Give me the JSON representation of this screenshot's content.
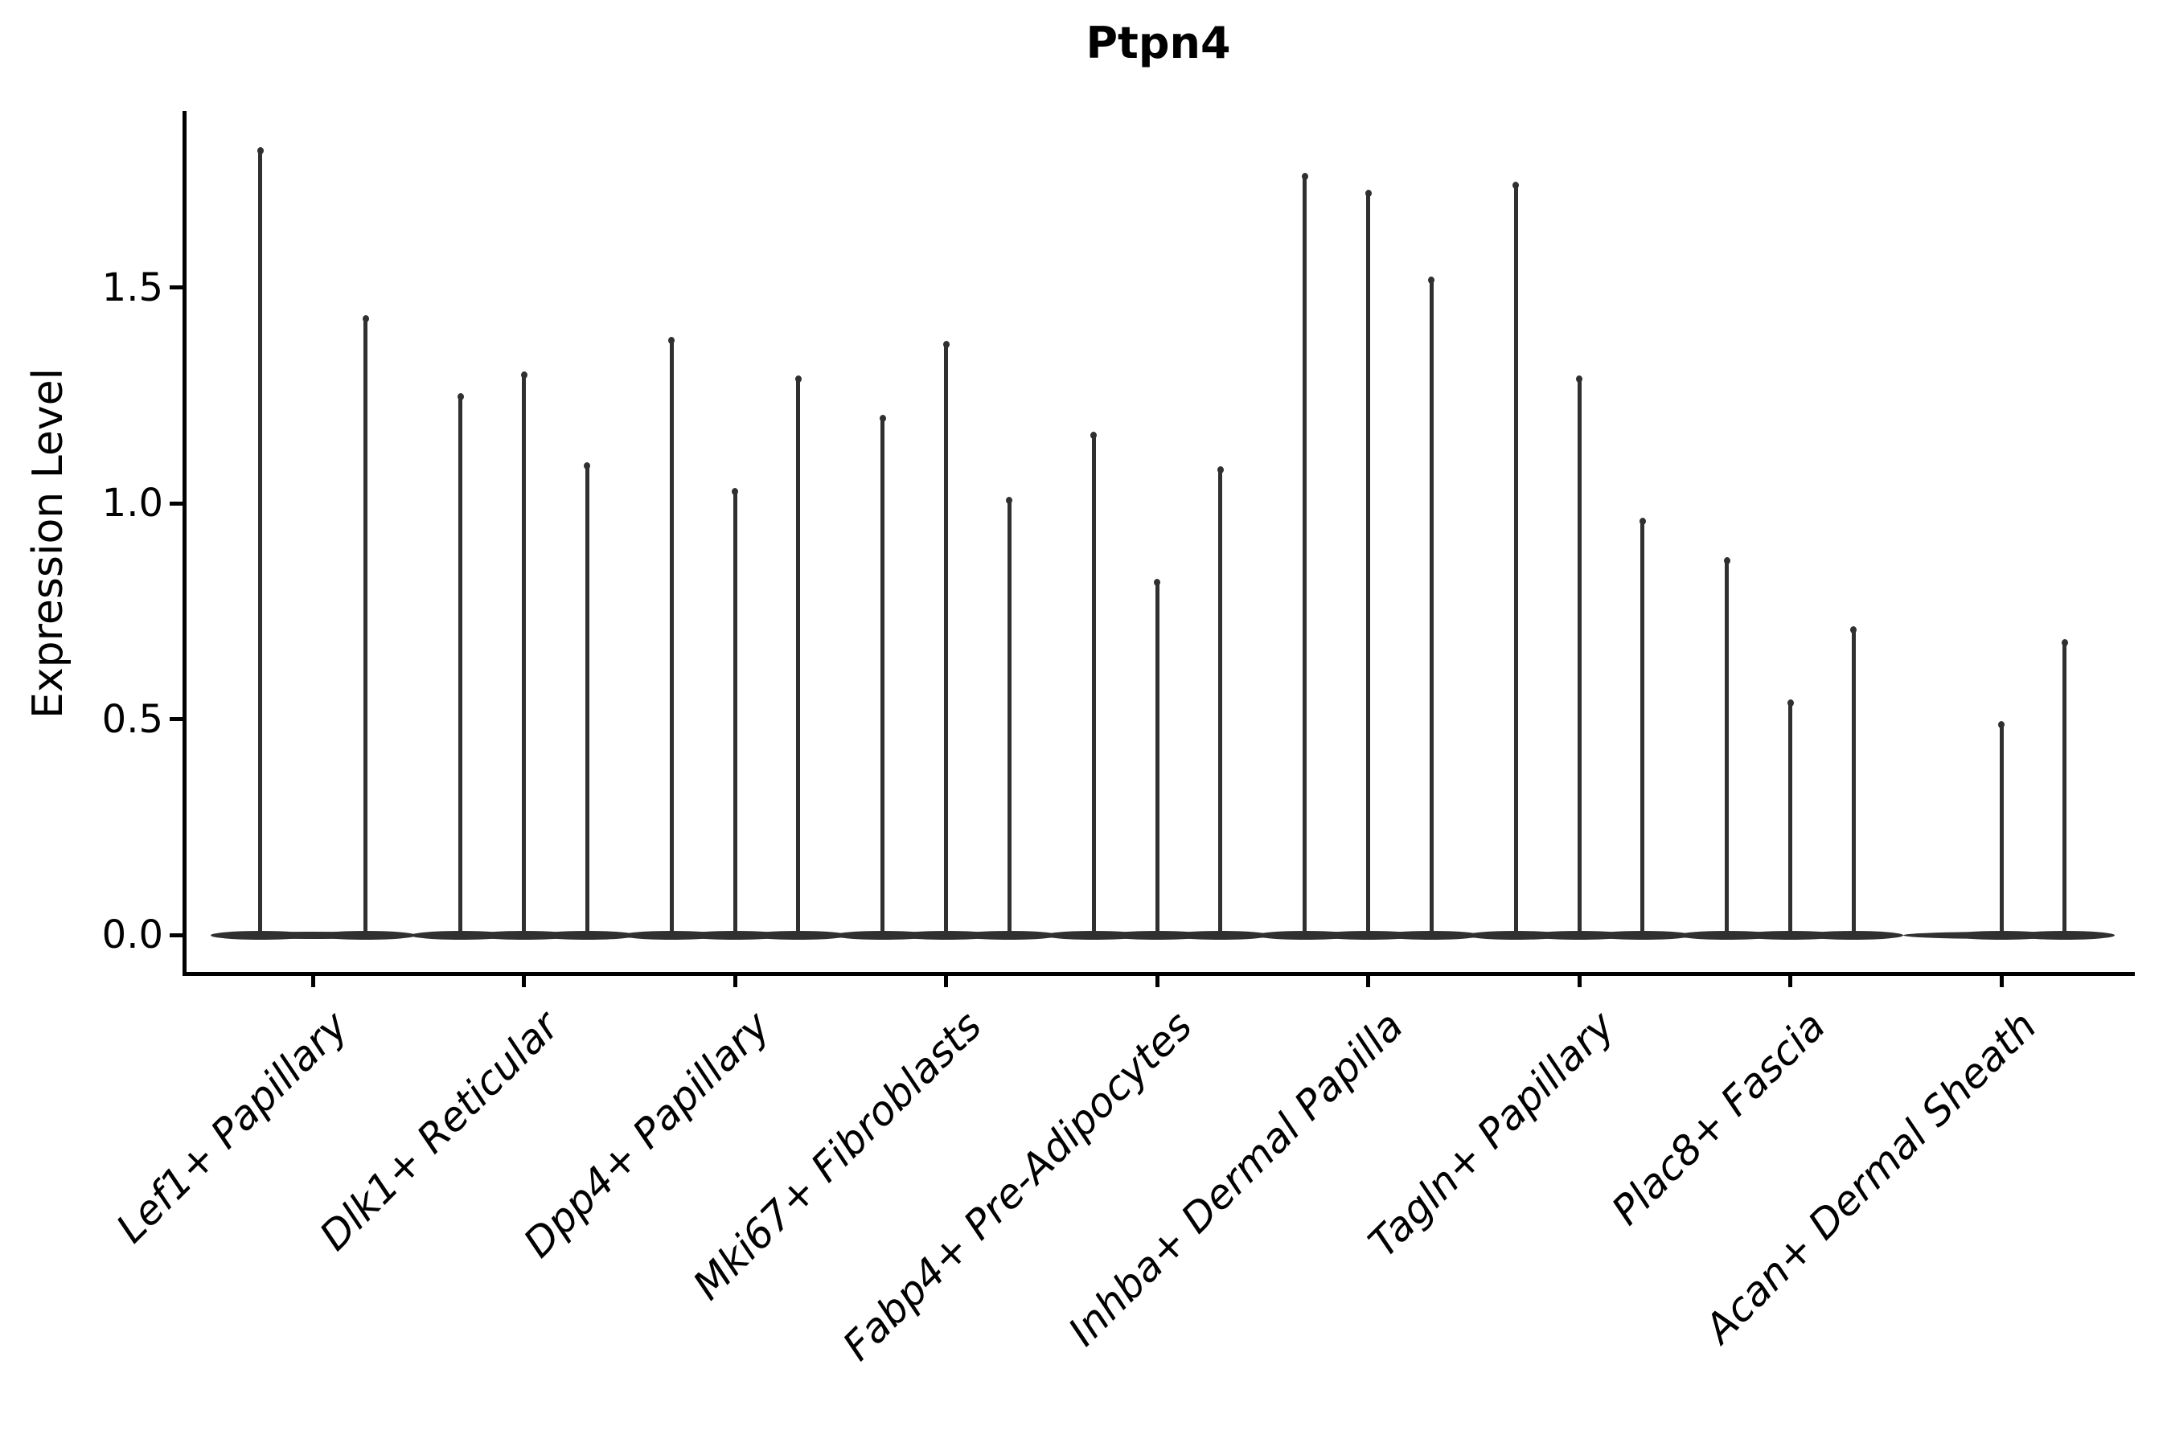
{
  "title": "Ptpn4",
  "y_axis": {
    "label": "Expression Level",
    "tick_labels": [
      "0.0",
      "0.5",
      "1.0",
      "1.5"
    ]
  },
  "chart_data": {
    "type": "violin",
    "title": "Ptpn4",
    "xlabel": "",
    "ylabel": "Expression Level",
    "ylim": [
      -0.05,
      1.95
    ],
    "yticks": [
      0.0,
      0.5,
      1.0,
      1.5
    ],
    "grid": false,
    "legend_position": "none",
    "ink_color": "#303030",
    "axis_color": "#000000",
    "background": "#ffffff",
    "categories": [
      "Lef1+ Papillary",
      "Dlk1+ Reticular",
      "Dpp4+ Papillary",
      "Mki67+ Fibroblasts",
      "Fabp4+ Pre-Adipocytes",
      "Inhba+ Dermal Papilla",
      "Tagln+ Papillary",
      "Plac8+ Fascia",
      "Acan+ Dermal Sheath"
    ],
    "description": "Seurat-style violin plot of Ptpn4 expression; each cluster shows very thin needle-like violins (bulk of cells at 0) whose peaks mark the maximum expression level; violin slot offsets are fractions of the group width",
    "groups": [
      {
        "category": "Lef1+ Papillary",
        "violins": [
          {
            "slot": -0.25,
            "peak": 1.82
          },
          {
            "slot": 0.25,
            "peak": 1.43
          }
        ]
      },
      {
        "category": "Dlk1+ Reticular",
        "violins": [
          {
            "slot": -0.3,
            "peak": 1.25
          },
          {
            "slot": 0.0,
            "peak": 1.3
          },
          {
            "slot": 0.3,
            "peak": 1.09
          }
        ]
      },
      {
        "category": "Dpp4+ Papillary",
        "violins": [
          {
            "slot": -0.3,
            "peak": 1.38
          },
          {
            "slot": 0.0,
            "peak": 1.03
          },
          {
            "slot": 0.3,
            "peak": 1.29
          }
        ]
      },
      {
        "category": "Mki67+ Fibroblasts",
        "violins": [
          {
            "slot": -0.3,
            "peak": 1.2
          },
          {
            "slot": 0.0,
            "peak": 1.37
          },
          {
            "slot": 0.3,
            "peak": 1.01
          }
        ]
      },
      {
        "category": "Fabp4+ Pre-Adipocytes",
        "violins": [
          {
            "slot": -0.3,
            "peak": 1.16
          },
          {
            "slot": 0.0,
            "peak": 0.82
          },
          {
            "slot": 0.3,
            "peak": 1.08
          }
        ]
      },
      {
        "category": "Inhba+ Dermal Papilla",
        "violins": [
          {
            "slot": -0.3,
            "peak": 1.76
          },
          {
            "slot": 0.0,
            "peak": 1.72
          },
          {
            "slot": 0.3,
            "peak": 1.52
          }
        ]
      },
      {
        "category": "Tagln+ Papillary",
        "violins": [
          {
            "slot": -0.3,
            "peak": 1.74
          },
          {
            "slot": 0.0,
            "peak": 1.29
          },
          {
            "slot": 0.3,
            "peak": 0.96
          }
        ]
      },
      {
        "category": "Plac8+ Fascia",
        "violins": [
          {
            "slot": -0.3,
            "peak": 0.87
          },
          {
            "slot": 0.0,
            "peak": 0.54
          },
          {
            "slot": 0.3,
            "peak": 0.71
          }
        ]
      },
      {
        "category": "Acan+ Dermal Sheath",
        "violins": [
          {
            "slot": 0.0,
            "peak": 0.49
          },
          {
            "slot": 0.3,
            "peak": 0.68
          }
        ]
      }
    ]
  }
}
